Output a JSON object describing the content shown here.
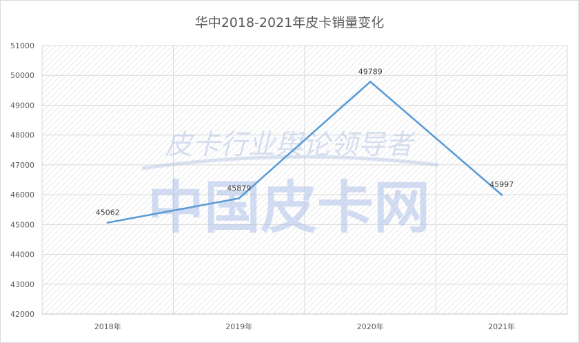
{
  "chart_data": {
    "type": "line",
    "title": "华中2018-2021年皮卡销量变化",
    "categories": [
      "2018年",
      "2019年",
      "2020年",
      "2021年"
    ],
    "series": [
      {
        "values": [
          45062,
          45879,
          49789,
          45997
        ]
      }
    ],
    "ylim": [
      42000,
      51000
    ],
    "yticks": [
      42000,
      43000,
      44000,
      45000,
      46000,
      47000,
      48000,
      49000,
      50000,
      51000
    ],
    "grid": true,
    "data_labels": true,
    "line_color": "#5b9bd5"
  },
  "watermark": {
    "tagline": "皮卡行业舆论领导者",
    "brand": "中国皮卡网"
  }
}
